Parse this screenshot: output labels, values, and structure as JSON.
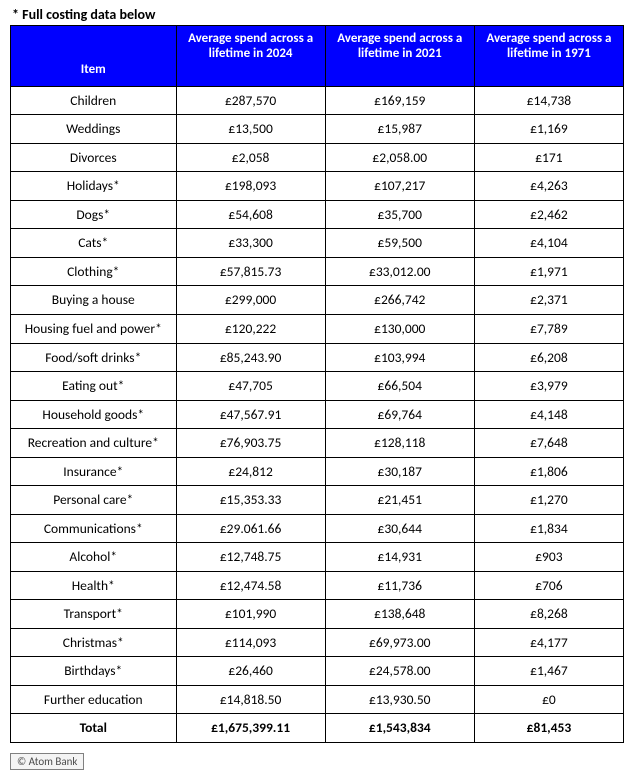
{
  "caption": "* Full costing data below",
  "columns": [
    "Item",
    "Average spend across a lifetime in 2024",
    "Average spend across a lifetime in 2021",
    "Average spend across a lifetime in 1971"
  ],
  "col_widths_pct": [
    27,
    24.33,
    24.33,
    24.33
  ],
  "header_bg": "#0000ff",
  "header_fg": "#ffffff",
  "border_color": "#000000",
  "rows": [
    {
      "item": "Children",
      "v2024": "£287,570",
      "v2021": "£169,159",
      "v1971": "£14,738"
    },
    {
      "item": "Weddings",
      "v2024": "£13,500",
      "v2021": "£15,987",
      "v1971": "£1,169"
    },
    {
      "item": "Divorces",
      "v2024": "£2,058",
      "v2021": "£2,058.00",
      "v1971": "£171"
    },
    {
      "item": "Holidays*",
      "v2024": "£198,093",
      "v2021": "£107,217",
      "v1971": "£4,263"
    },
    {
      "item": "Dogs*",
      "v2024": "£54,608",
      "v2021": "£35,700",
      "v1971": "£2,462"
    },
    {
      "item": "Cats*",
      "v2024": "£33,300",
      "v2021": "£59,500",
      "v1971": "£4,104"
    },
    {
      "item": "Clothing*",
      "v2024": "£57,815.73",
      "v2021": "£33,012.00",
      "v1971": "£1,971"
    },
    {
      "item": "Buying a house",
      "v2024": "£299,000",
      "v2021": "£266,742",
      "v1971": "£2,371"
    },
    {
      "item": "Housing fuel and power*",
      "v2024": "£120,222",
      "v2021": "£130,000",
      "v1971": "£7,789"
    },
    {
      "item": "Food/soft drinks*",
      "v2024": "£85,243.90",
      "v2021": "£103,994",
      "v1971": "£6,208"
    },
    {
      "item": "Eating out*",
      "v2024": "£47,705",
      "v2021": "£66,504",
      "v1971": "£3,979"
    },
    {
      "item": "Household goods*",
      "v2024": "£47,567.91",
      "v2021": "£69,764",
      "v1971": "£4,148"
    },
    {
      "item": "Recreation and culture*",
      "v2024": "£76,903.75",
      "v2021": "£128,118",
      "v1971": "£7,648"
    },
    {
      "item": "Insurance*",
      "v2024": "£24,812",
      "v2021": "£30,187",
      "v1971": "£1,806"
    },
    {
      "item": "Personal care*",
      "v2024": "£15,353.33",
      "v2021": "£21,451",
      "v1971": "£1,270"
    },
    {
      "item": "Communications*",
      "v2024": "£29.061.66",
      "v2021": "£30,644",
      "v1971": "£1,834"
    },
    {
      "item": "Alcohol*",
      "v2024": "£12,748.75",
      "v2021": "£14,931",
      "v1971": "£903"
    },
    {
      "item": "Health*",
      "v2024": "£12,474.58",
      "v2021": "£11,736",
      "v1971": "£706"
    },
    {
      "item": "Transport*",
      "v2024": "£101,990",
      "v2021": "£138,648",
      "v1971": "£8,268"
    },
    {
      "item": "Christmas*",
      "v2024": "£114,093",
      "v2021": "£69,973.00",
      "v1971": "£4,177"
    },
    {
      "item": "Birthdays*",
      "v2024": "£26,460",
      "v2021": "£24,578.00",
      "v1971": "£1,467"
    },
    {
      "item": "Further education",
      "v2024": "£14,818.50",
      "v2021": "£13,930.50",
      "v1971": "£0"
    }
  ],
  "total": {
    "item": "Total",
    "v2024": "£1,675,399.11",
    "v2021": "£1,543,834",
    "v1971": "£81,453"
  },
  "credit": "© Atom Bank"
}
